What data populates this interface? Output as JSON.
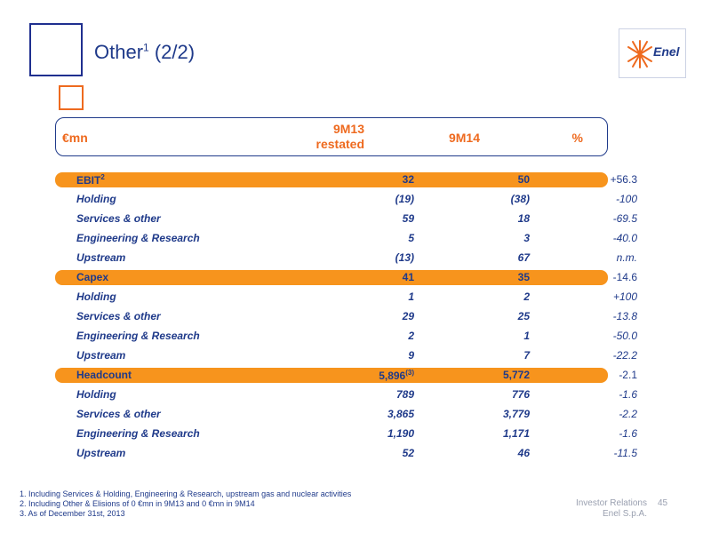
{
  "slide": {
    "title": "Other",
    "title_sup": "1",
    "title_suffix": "(2/2)"
  },
  "logo": {
    "text": "Enel"
  },
  "table_header": {
    "unit": "€mn",
    "col_9m13_line1": "9M13",
    "col_9m13_line2": "restated",
    "col_9m14": "9M14",
    "col_pct": "%"
  },
  "rows": [
    {
      "label": "EBIT",
      "sup": "2",
      "a": "32",
      "a_sup": "",
      "b": "50",
      "c": "+56.3",
      "highlight": true
    },
    {
      "label": "Holding",
      "sup": "",
      "a": "(19)",
      "a_sup": "",
      "b": "(38)",
      "c": "-100",
      "highlight": false
    },
    {
      "label": "Services & other",
      "sup": "",
      "a": "59",
      "a_sup": "",
      "b": "18",
      "c": "-69.5",
      "highlight": false
    },
    {
      "label": "Engineering & Research",
      "sup": "",
      "a": "5",
      "a_sup": "",
      "b": "3",
      "c": "-40.0",
      "highlight": false
    },
    {
      "label": "Upstream",
      "sup": "",
      "a": "(13)",
      "a_sup": "",
      "b": "67",
      "c": "n.m.",
      "highlight": false
    },
    {
      "label": "Capex",
      "sup": "",
      "a": "41",
      "a_sup": "",
      "b": "35",
      "c": "-14.6",
      "highlight": true
    },
    {
      "label": "Holding",
      "sup": "",
      "a": "1",
      "a_sup": "",
      "b": "2",
      "c": "+100",
      "highlight": false
    },
    {
      "label": "Services & other",
      "sup": "",
      "a": "29",
      "a_sup": "",
      "b": "25",
      "c": "-13.8",
      "highlight": false
    },
    {
      "label": "Engineering & Research",
      "sup": "",
      "a": "2",
      "a_sup": "",
      "b": "1",
      "c": "-50.0",
      "highlight": false
    },
    {
      "label": "Upstream",
      "sup": "",
      "a": "9",
      "a_sup": "",
      "b": "7",
      "c": "-22.2",
      "highlight": false
    },
    {
      "label": "Headcount",
      "sup": "",
      "a": "5,896",
      "a_sup": "(3)",
      "b": "5,772",
      "c": "-2.1",
      "highlight": true
    },
    {
      "label": "Holding",
      "sup": "",
      "a": "789",
      "a_sup": "",
      "b": "776",
      "c": "-1.6",
      "highlight": false
    },
    {
      "label": "Services & other",
      "sup": "",
      "a": "3,865",
      "a_sup": "",
      "b": "3,779",
      "c": "-2.2",
      "highlight": false
    },
    {
      "label": "Engineering & Research",
      "sup": "",
      "a": "1,190",
      "a_sup": "",
      "b": "1,171",
      "c": "-1.6",
      "highlight": false
    },
    {
      "label": "Upstream",
      "sup": "",
      "a": "52",
      "a_sup": "",
      "b": "46",
      "c": "-11.5",
      "highlight": false
    }
  ],
  "footnotes": [
    "1. Including Services & Holding, Engineering & Research, upstream gas and nuclear activities",
    "2. Including Other & Elisions of 0 €mn in 9M13 and 0 €mn in 9M14",
    "3. As of December 31st, 2013"
  ],
  "footer": {
    "line1": "Investor Relations",
    "line2": "Enel S.p.A.",
    "page": "45"
  },
  "colors": {
    "primary_blue": "#1f3a8a",
    "accent_orange": "#ee6a1f",
    "highlight_orange": "#f7941d"
  }
}
